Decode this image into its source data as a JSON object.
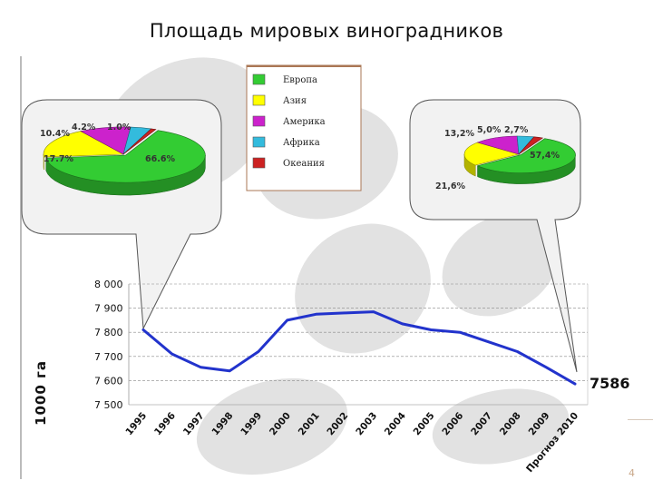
{
  "slide": {
    "title": "Площадь мировых виноградников",
    "page_number": "4"
  },
  "legend": [
    {
      "label": "Европа",
      "color": "#33cc33"
    },
    {
      "label": "Азия",
      "color": "#ffff00"
    },
    {
      "label": "Америка",
      "color": "#cc22cc"
    },
    {
      "label": "Африка",
      "color": "#33bbdd"
    },
    {
      "label": "Океания",
      "color": "#cc2222"
    }
  ],
  "colors": {
    "line": "#2233cc",
    "grid": "#888888",
    "callout_fill": "#f2f2f2"
  },
  "chart_data": [
    {
      "type": "pie",
      "categories": [
        "Европа",
        "Азия",
        "Америка",
        "Африка",
        "Океания"
      ],
      "values": [
        66.6,
        17.7,
        10.4,
        4.2,
        1.0
      ],
      "labels": [
        "66.6%",
        "17.7%",
        "10.4%",
        "4.2%",
        "1.0%"
      ]
    },
    {
      "type": "pie",
      "categories": [
        "Европа",
        "Азия",
        "Америка",
        "Африка",
        "Океания"
      ],
      "values": [
        57.4,
        21.6,
        13.2,
        5.0,
        2.7
      ],
      "labels": [
        "57,4%",
        "21,6%",
        "13,2%",
        "5,0%",
        "2,7%"
      ]
    },
    {
      "type": "line",
      "ylabel": "1000 га",
      "x": [
        "1995",
        "1996",
        "1997",
        "1998",
        "1999",
        "2000",
        "2001",
        "2002",
        "2003",
        "2004",
        "2005",
        "2006",
        "2007",
        "2008",
        "2009",
        "Прогноз 2010"
      ],
      "y": [
        7810,
        7710,
        7655,
        7640,
        7720,
        7850,
        7875,
        7880,
        7885,
        7835,
        7810,
        7800,
        7760,
        7720,
        7655,
        7586
      ],
      "ylim": [
        7500,
        8000
      ],
      "yticks": [
        "7 500",
        "7 600",
        "7 700",
        "7 800",
        "7 900",
        "8 000"
      ],
      "last_value_label": "7586",
      "grid": true
    }
  ]
}
